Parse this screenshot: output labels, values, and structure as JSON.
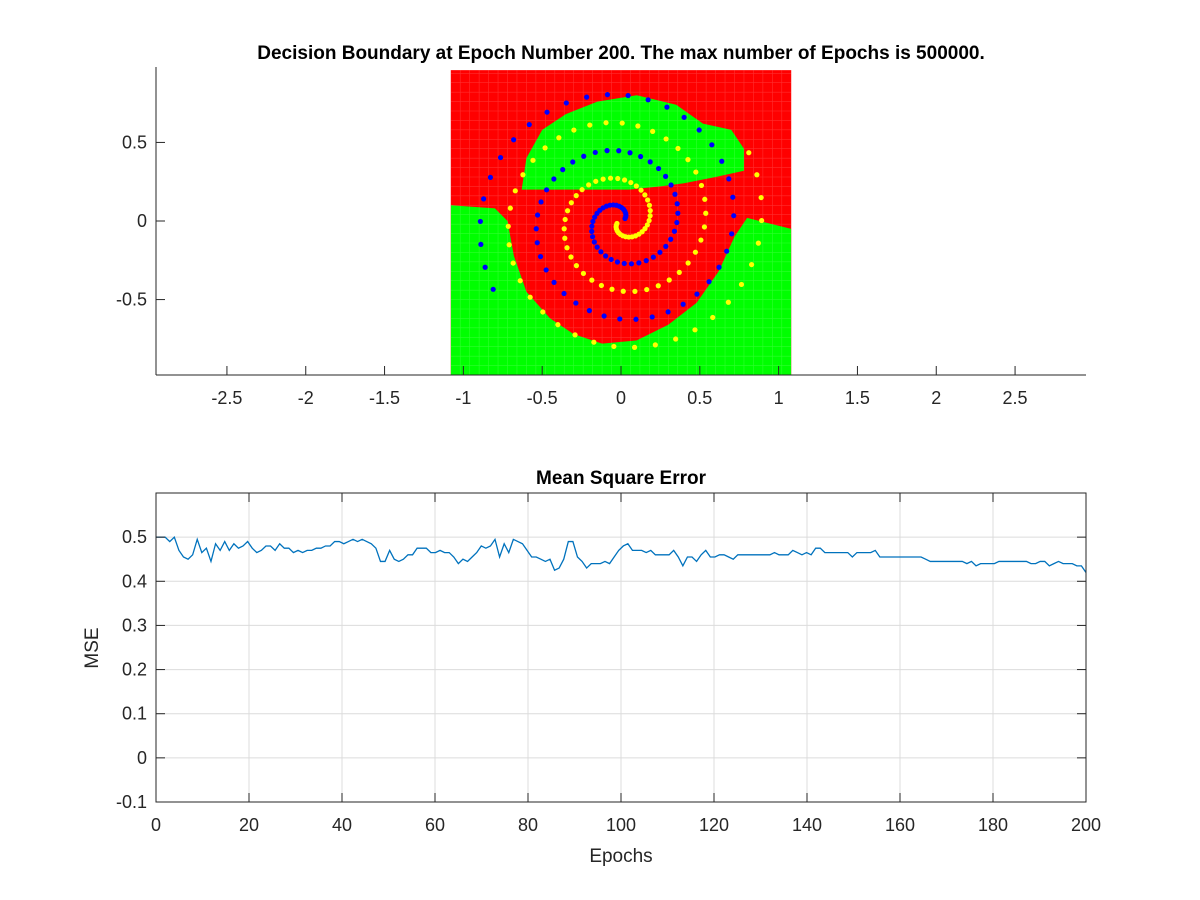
{
  "colors": {
    "class_a_region": "#ff0000",
    "class_b_region": "#00ff00",
    "class_a_points": "#0000ff",
    "class_b_points": "#ffff00",
    "mse_line": "#0072bd",
    "axis": "#262626",
    "grid": "#dcdcdc"
  },
  "chart_data": [
    {
      "type": "scatter",
      "title": "Decision Boundary at Epoch Number 200. The max number of Epochs is 500000.",
      "xlabel": "",
      "ylabel": "",
      "xlim": [
        -2.95,
        2.95
      ],
      "ylim": [
        -0.98,
        0.98
      ],
      "xticks": [
        -2.5,
        -2,
        -1.5,
        -1,
        -0.5,
        0,
        0.5,
        1,
        1.5,
        2,
        2.5
      ],
      "xtick_labels": [
        "-2.5",
        "-2",
        "-1.5",
        "-1",
        "-0.5",
        "0",
        "0.5",
        "1",
        "1.5",
        "2",
        "2.5"
      ],
      "yticks": [
        -0.5,
        0,
        0.5
      ],
      "ytick_labels": [
        "-0.5",
        "0",
        "0.5"
      ],
      "grid": false,
      "box": false,
      "grid_region": {
        "x_range": [
          -1.08,
          1.08
        ],
        "y_range": [
          -0.98,
          0.96
        ],
        "step": 0.03,
        "description_of_classes": "dense grid of predicted class markers"
      },
      "boundary_polygon": [
        [
          -1.08,
          0.1
        ],
        [
          -0.8,
          0.08
        ],
        [
          -0.72,
          0.0
        ],
        [
          -0.68,
          -0.22
        ],
        [
          -0.6,
          -0.45
        ],
        [
          -0.45,
          -0.62
        ],
        [
          -0.3,
          -0.72
        ],
        [
          -0.12,
          -0.78
        ],
        [
          0.1,
          -0.76
        ],
        [
          0.3,
          -0.66
        ],
        [
          0.48,
          -0.52
        ],
        [
          0.62,
          -0.32
        ],
        [
          0.72,
          -0.1
        ],
        [
          0.8,
          0.02
        ],
        [
          1.08,
          -0.05
        ],
        [
          1.08,
          -0.98
        ],
        [
          -1.08,
          -0.98
        ]
      ],
      "upper_green_polygon": [
        [
          -0.63,
          0.2
        ],
        [
          -0.6,
          0.4
        ],
        [
          -0.5,
          0.58
        ],
        [
          -0.35,
          0.68
        ],
        [
          -0.15,
          0.76
        ],
        [
          0.1,
          0.8
        ],
        [
          0.35,
          0.74
        ],
        [
          0.52,
          0.62
        ],
        [
          0.7,
          0.58
        ],
        [
          0.78,
          0.46
        ],
        [
          0.78,
          0.32
        ],
        [
          0.6,
          0.28
        ],
        [
          0.4,
          0.24
        ],
        [
          0.25,
          0.22
        ],
        [
          0.05,
          0.2
        ],
        [
          -0.3,
          0.2
        ]
      ],
      "series": [
        {
          "spiral": "a",
          "angle_start": 0.55,
          "angle_end": 16.2,
          "radius_start": 0.03,
          "radius_end": 0.92,
          "count": 97
        },
        {
          "spiral": "b",
          "angle_start": 0.55,
          "angle_end": 16.2,
          "radius_start": 0.03,
          "radius_end": 0.92,
          "count": 97,
          "rotation": 3.14159
        }
      ]
    },
    {
      "type": "line",
      "title": "Mean Square Error",
      "xlabel": "Epochs",
      "ylabel": "MSE",
      "xlim": [
        0,
        200
      ],
      "ylim": [
        -0.1,
        0.6
      ],
      "xticks": [
        0,
        20,
        40,
        60,
        80,
        100,
        120,
        140,
        160,
        180,
        200
      ],
      "xtick_labels": [
        "0",
        "20",
        "40",
        "60",
        "80",
        "100",
        "120",
        "140",
        "160",
        "180",
        "200"
      ],
      "yticks": [
        -0.1,
        0,
        0.1,
        0.2,
        0.3,
        0.4,
        0.5
      ],
      "ytick_labels": [
        "-0.1",
        "0",
        "0.1",
        "0.2",
        "0.3",
        "0.4",
        "0.5"
      ],
      "grid": true,
      "box": true,
      "values": [
        0.5,
        0.5,
        0.5,
        0.49,
        0.5,
        0.47,
        0.455,
        0.45,
        0.46,
        0.495,
        0.465,
        0.475,
        0.445,
        0.485,
        0.47,
        0.49,
        0.47,
        0.485,
        0.475,
        0.48,
        0.49,
        0.475,
        0.465,
        0.47,
        0.48,
        0.48,
        0.47,
        0.485,
        0.475,
        0.475,
        0.465,
        0.47,
        0.465,
        0.47,
        0.47,
        0.475,
        0.475,
        0.48,
        0.48,
        0.49,
        0.49,
        0.485,
        0.49,
        0.495,
        0.49,
        0.495,
        0.49,
        0.485,
        0.475,
        0.445,
        0.445,
        0.47,
        0.45,
        0.445,
        0.45,
        0.46,
        0.46,
        0.475,
        0.475,
        0.475,
        0.465,
        0.465,
        0.47,
        0.465,
        0.465,
        0.455,
        0.44,
        0.45,
        0.445,
        0.455,
        0.465,
        0.48,
        0.475,
        0.48,
        0.495,
        0.455,
        0.485,
        0.465,
        0.495,
        0.49,
        0.485,
        0.47,
        0.455,
        0.455,
        0.45,
        0.445,
        0.45,
        0.425,
        0.43,
        0.45,
        0.49,
        0.49,
        0.455,
        0.445,
        0.43,
        0.44,
        0.44,
        0.44,
        0.445,
        0.44,
        0.455,
        0.47,
        0.48,
        0.485,
        0.47,
        0.47,
        0.47,
        0.465,
        0.47,
        0.46,
        0.46,
        0.46,
        0.46,
        0.47,
        0.455,
        0.435,
        0.455,
        0.455,
        0.445,
        0.46,
        0.47,
        0.455,
        0.455,
        0.46,
        0.46,
        0.455,
        0.45,
        0.46,
        0.46,
        0.46,
        0.46,
        0.46,
        0.46,
        0.46,
        0.46,
        0.465,
        0.46,
        0.46,
        0.46,
        0.47,
        0.465,
        0.46,
        0.465,
        0.46,
        0.475,
        0.475,
        0.465,
        0.465,
        0.465,
        0.465,
        0.465,
        0.465,
        0.455,
        0.465,
        0.465,
        0.465,
        0.465,
        0.47,
        0.455,
        0.455,
        0.455,
        0.455,
        0.455,
        0.455,
        0.455,
        0.455,
        0.455,
        0.455,
        0.45,
        0.445,
        0.445,
        0.445,
        0.445,
        0.445,
        0.445,
        0.445,
        0.445,
        0.44,
        0.445,
        0.435,
        0.44,
        0.44,
        0.44,
        0.44,
        0.445,
        0.445,
        0.445,
        0.445,
        0.445,
        0.445,
        0.445,
        0.44,
        0.44,
        0.445,
        0.445,
        0.435,
        0.44,
        0.445,
        0.44,
        0.44,
        0.44,
        0.435,
        0.435,
        0.42
      ]
    }
  ]
}
